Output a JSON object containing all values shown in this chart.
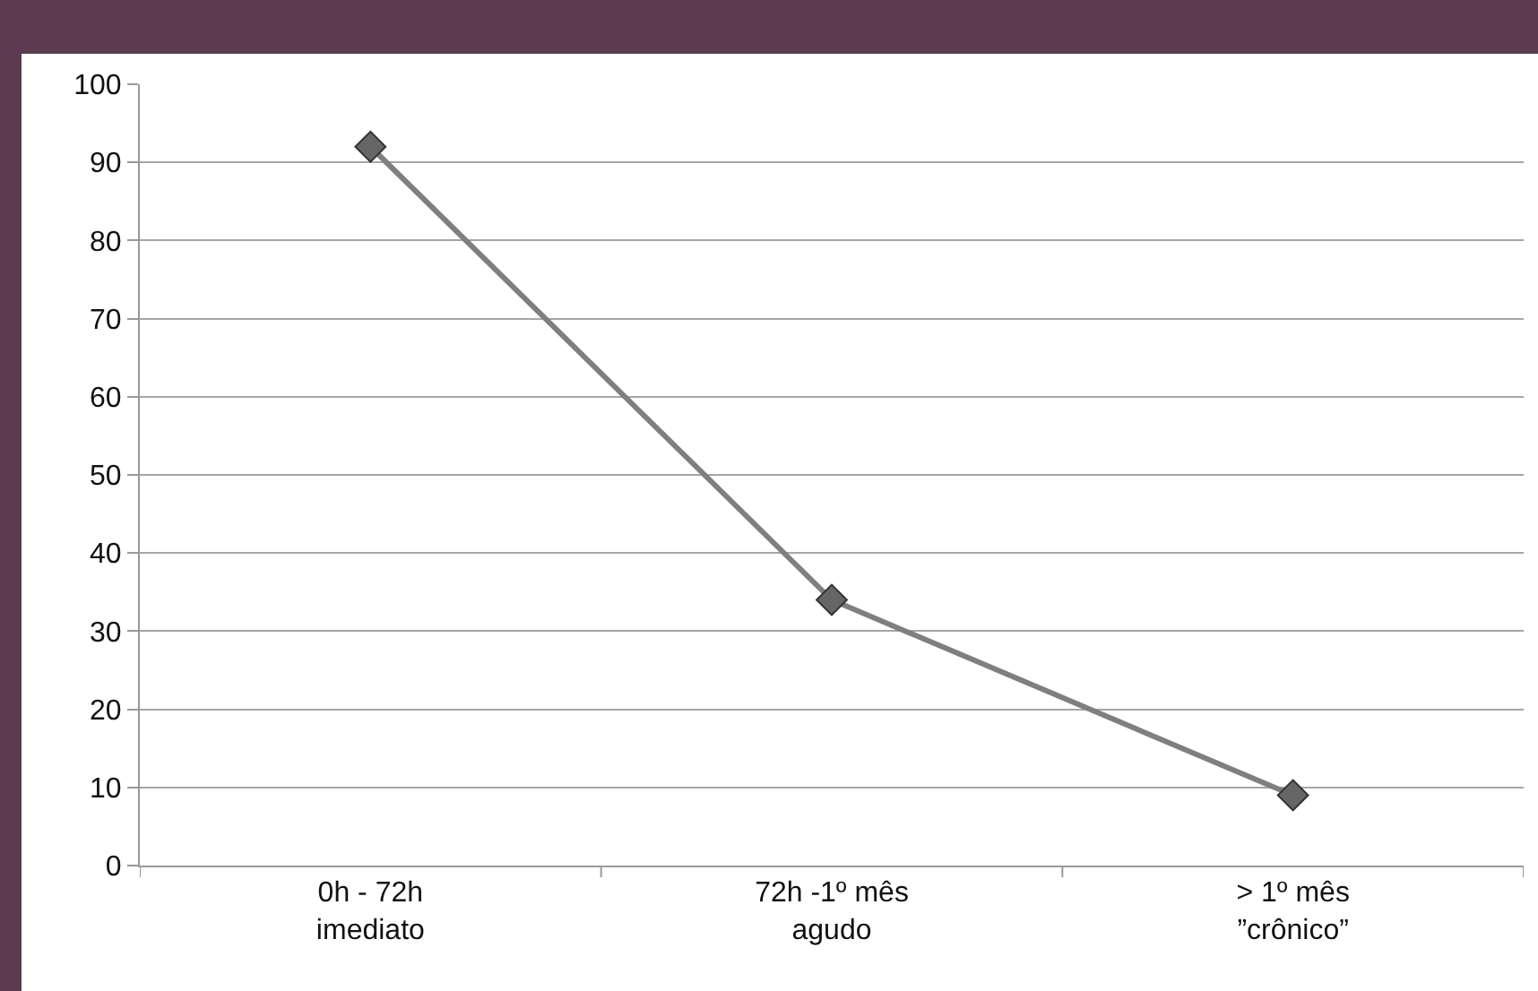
{
  "chart_data": {
    "type": "line",
    "categories": [
      "0h - 72h\nimediato",
      "72h -1º mês\nagudo",
      "> 1º mês\n”crônico”"
    ],
    "series": [
      {
        "color": "#7f7f7f",
        "values": [
          92,
          34,
          9
        ]
      }
    ],
    "ylim": [
      0,
      100
    ],
    "yticks": [
      0,
      10,
      20,
      30,
      40,
      50,
      60,
      70,
      80,
      90,
      100
    ],
    "grid": "y",
    "marker": "diamond",
    "line_style": "solid"
  }
}
